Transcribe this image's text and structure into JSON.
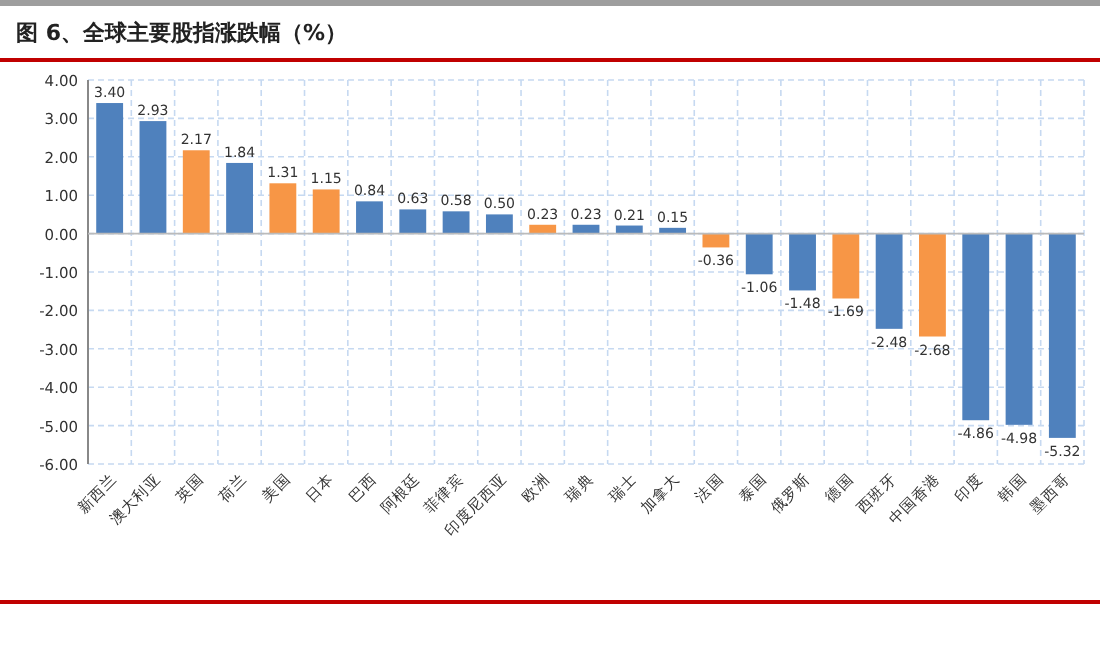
{
  "chart_data": {
    "type": "bar",
    "title": "图 6、全球主要股指涨跌幅（%）",
    "categories": [
      "新西兰",
      "澳大利亚",
      "英国",
      "荷兰",
      "美国",
      "日本",
      "巴西",
      "阿根廷",
      "菲律宾",
      "印度尼西亚",
      "欧洲",
      "瑞典",
      "瑞士",
      "加拿大",
      "法国",
      "泰国",
      "俄罗斯",
      "德国",
      "西班牙",
      "中国香港",
      "印度",
      "韩国",
      "墨西哥"
    ],
    "values": [
      3.4,
      2.93,
      2.17,
      1.84,
      1.31,
      1.15,
      0.84,
      0.63,
      0.58,
      0.5,
      0.23,
      0.23,
      0.21,
      0.15,
      -0.36,
      -1.06,
      -1.48,
      -1.69,
      -2.48,
      -2.68,
      -4.86,
      -4.98,
      -5.32
    ],
    "colors": [
      "#4f81bd",
      "#4f81bd",
      "#f79646",
      "#4f81bd",
      "#f79646",
      "#f79646",
      "#4f81bd",
      "#4f81bd",
      "#4f81bd",
      "#4f81bd",
      "#f79646",
      "#4f81bd",
      "#4f81bd",
      "#4f81bd",
      "#f79646",
      "#4f81bd",
      "#4f81bd",
      "#f79646",
      "#4f81bd",
      "#f79646",
      "#4f81bd",
      "#4f81bd",
      "#4f81bd"
    ],
    "ylim": [
      -6,
      4
    ],
    "yticks": [
      {
        "value": -6,
        "label": "-6.00"
      },
      {
        "value": -5,
        "label": "-5.00"
      },
      {
        "value": -4,
        "label": "-4.00"
      },
      {
        "value": -3,
        "label": "-3.00"
      },
      {
        "value": -2,
        "label": "-2.00"
      },
      {
        "value": -1,
        "label": "-1.00"
      },
      {
        "value": 0,
        "label": "0.00"
      },
      {
        "value": 1,
        "label": "1.00"
      },
      {
        "value": 2,
        "label": "2.00"
      },
      {
        "value": 3,
        "label": "3.00"
      },
      {
        "value": 4,
        "label": "4.00"
      }
    ],
    "value_labels": [
      "3.40",
      "2.93",
      "2.17",
      "1.84",
      "1.31",
      "1.15",
      "0.84",
      "0.63",
      "0.58",
      "0.50",
      "0.23",
      "0.23",
      "0.21",
      "0.15",
      "-0.36",
      "-1.06",
      "-1.48",
      "-1.69",
      "-2.48",
      "-2.68",
      "-4.86",
      "-4.98",
      "-5.32"
    ],
    "grid": true
  }
}
